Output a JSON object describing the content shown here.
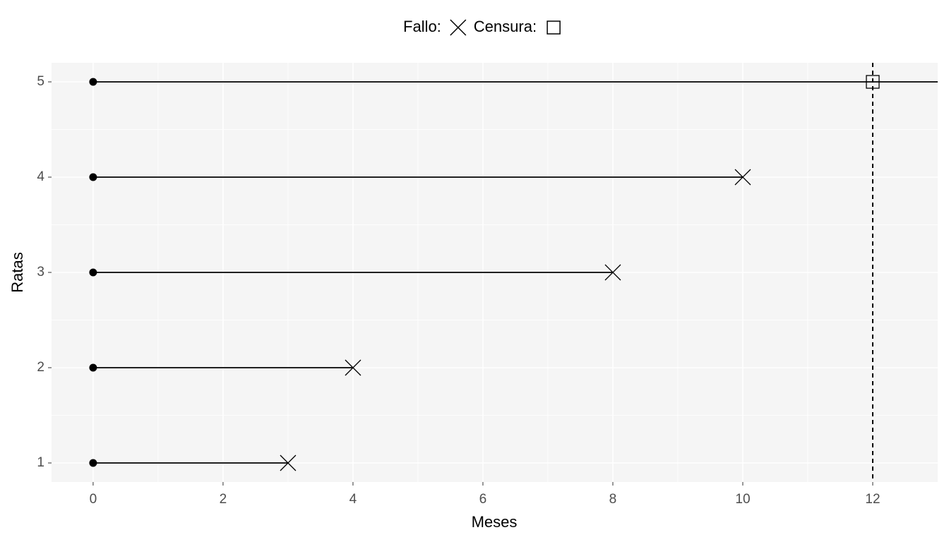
{
  "chart_data": {
    "type": "segment",
    "x_label": "Meses",
    "y_label": "Ratas",
    "legend": [
      {
        "label": "Fallo:",
        "shape": "x"
      },
      {
        "label": "Censura:",
        "shape": "square"
      }
    ],
    "y": [
      1,
      2,
      3,
      4,
      5
    ],
    "start": [
      0,
      0,
      0,
      0,
      0
    ],
    "end": [
      3,
      4,
      8,
      10,
      13
    ],
    "event": [
      3,
      4,
      8,
      10,
      12
    ],
    "shapes": [
      "x",
      "x",
      "x",
      "x",
      "square"
    ],
    "color": "#000000",
    "reference_line": {
      "x": 12,
      "style": "dashed"
    },
    "xlim": [
      -0.64,
      13
    ],
    "ylim": [
      0.8,
      5.2
    ],
    "xticks": [
      0,
      2,
      4,
      6,
      8,
      10,
      12
    ],
    "yticks": [
      1,
      2,
      3,
      4,
      5
    ],
    "xminor": [
      1,
      3,
      5,
      7,
      9,
      11
    ],
    "yminor": [
      1.5,
      2.5,
      3.5,
      4.5
    ],
    "grid": true
  }
}
